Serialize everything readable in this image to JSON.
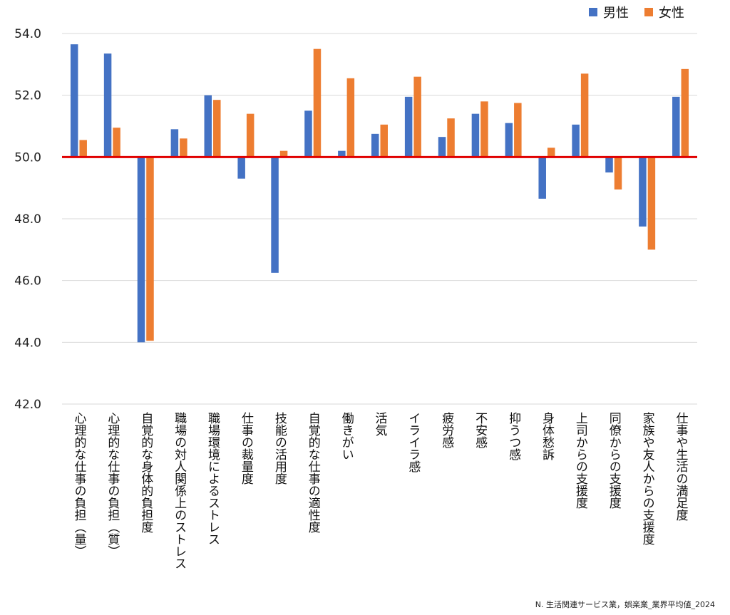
{
  "chart_data": {
    "type": "bar",
    "categories": [
      "心理的な仕事の負担（量）",
      "心理的な仕事の負担（質）",
      "自覚的な身体的負担度",
      "職場の対人関係上のストレス",
      "職場環境によるストレス",
      "仕事の裁量度",
      "技能の活用度",
      "自覚的な仕事の適性度",
      "働きがい",
      "活気",
      "イライラ感",
      "疲労感",
      "不安感",
      "抑うつ感",
      "身体愁訴",
      "上司からの支援度",
      "同僚からの支援度",
      "家族や友人からの支援度",
      "仕事や生活の満足度"
    ],
    "series": [
      {
        "name": "男性",
        "color": "#4472C4",
        "values": [
          53.65,
          53.35,
          44.0,
          50.9,
          52.0,
          49.3,
          46.25,
          51.5,
          50.2,
          50.75,
          51.95,
          50.65,
          51.4,
          51.1,
          48.65,
          51.05,
          49.5,
          47.75,
          51.95
        ]
      },
      {
        "name": "女性",
        "color": "#ED7D31",
        "values": [
          50.55,
          50.95,
          44.05,
          50.6,
          51.85,
          51.4,
          50.2,
          53.5,
          52.55,
          51.05,
          52.6,
          51.25,
          51.8,
          51.75,
          50.3,
          52.7,
          48.95,
          47.0,
          52.85
        ]
      }
    ],
    "ylim": [
      42,
      54
    ],
    "yticks": [
      "42.0",
      "44.0",
      "46.0",
      "48.0",
      "50.0",
      "52.0",
      "54.0"
    ],
    "baseline": 50,
    "baseline_color": "#E00000",
    "grid": true,
    "legend": "top-right",
    "title": "",
    "xlabel": "",
    "ylabel": ""
  },
  "footnote": "N. 生活関連サービス業，娯楽業_業界平均値_2024"
}
